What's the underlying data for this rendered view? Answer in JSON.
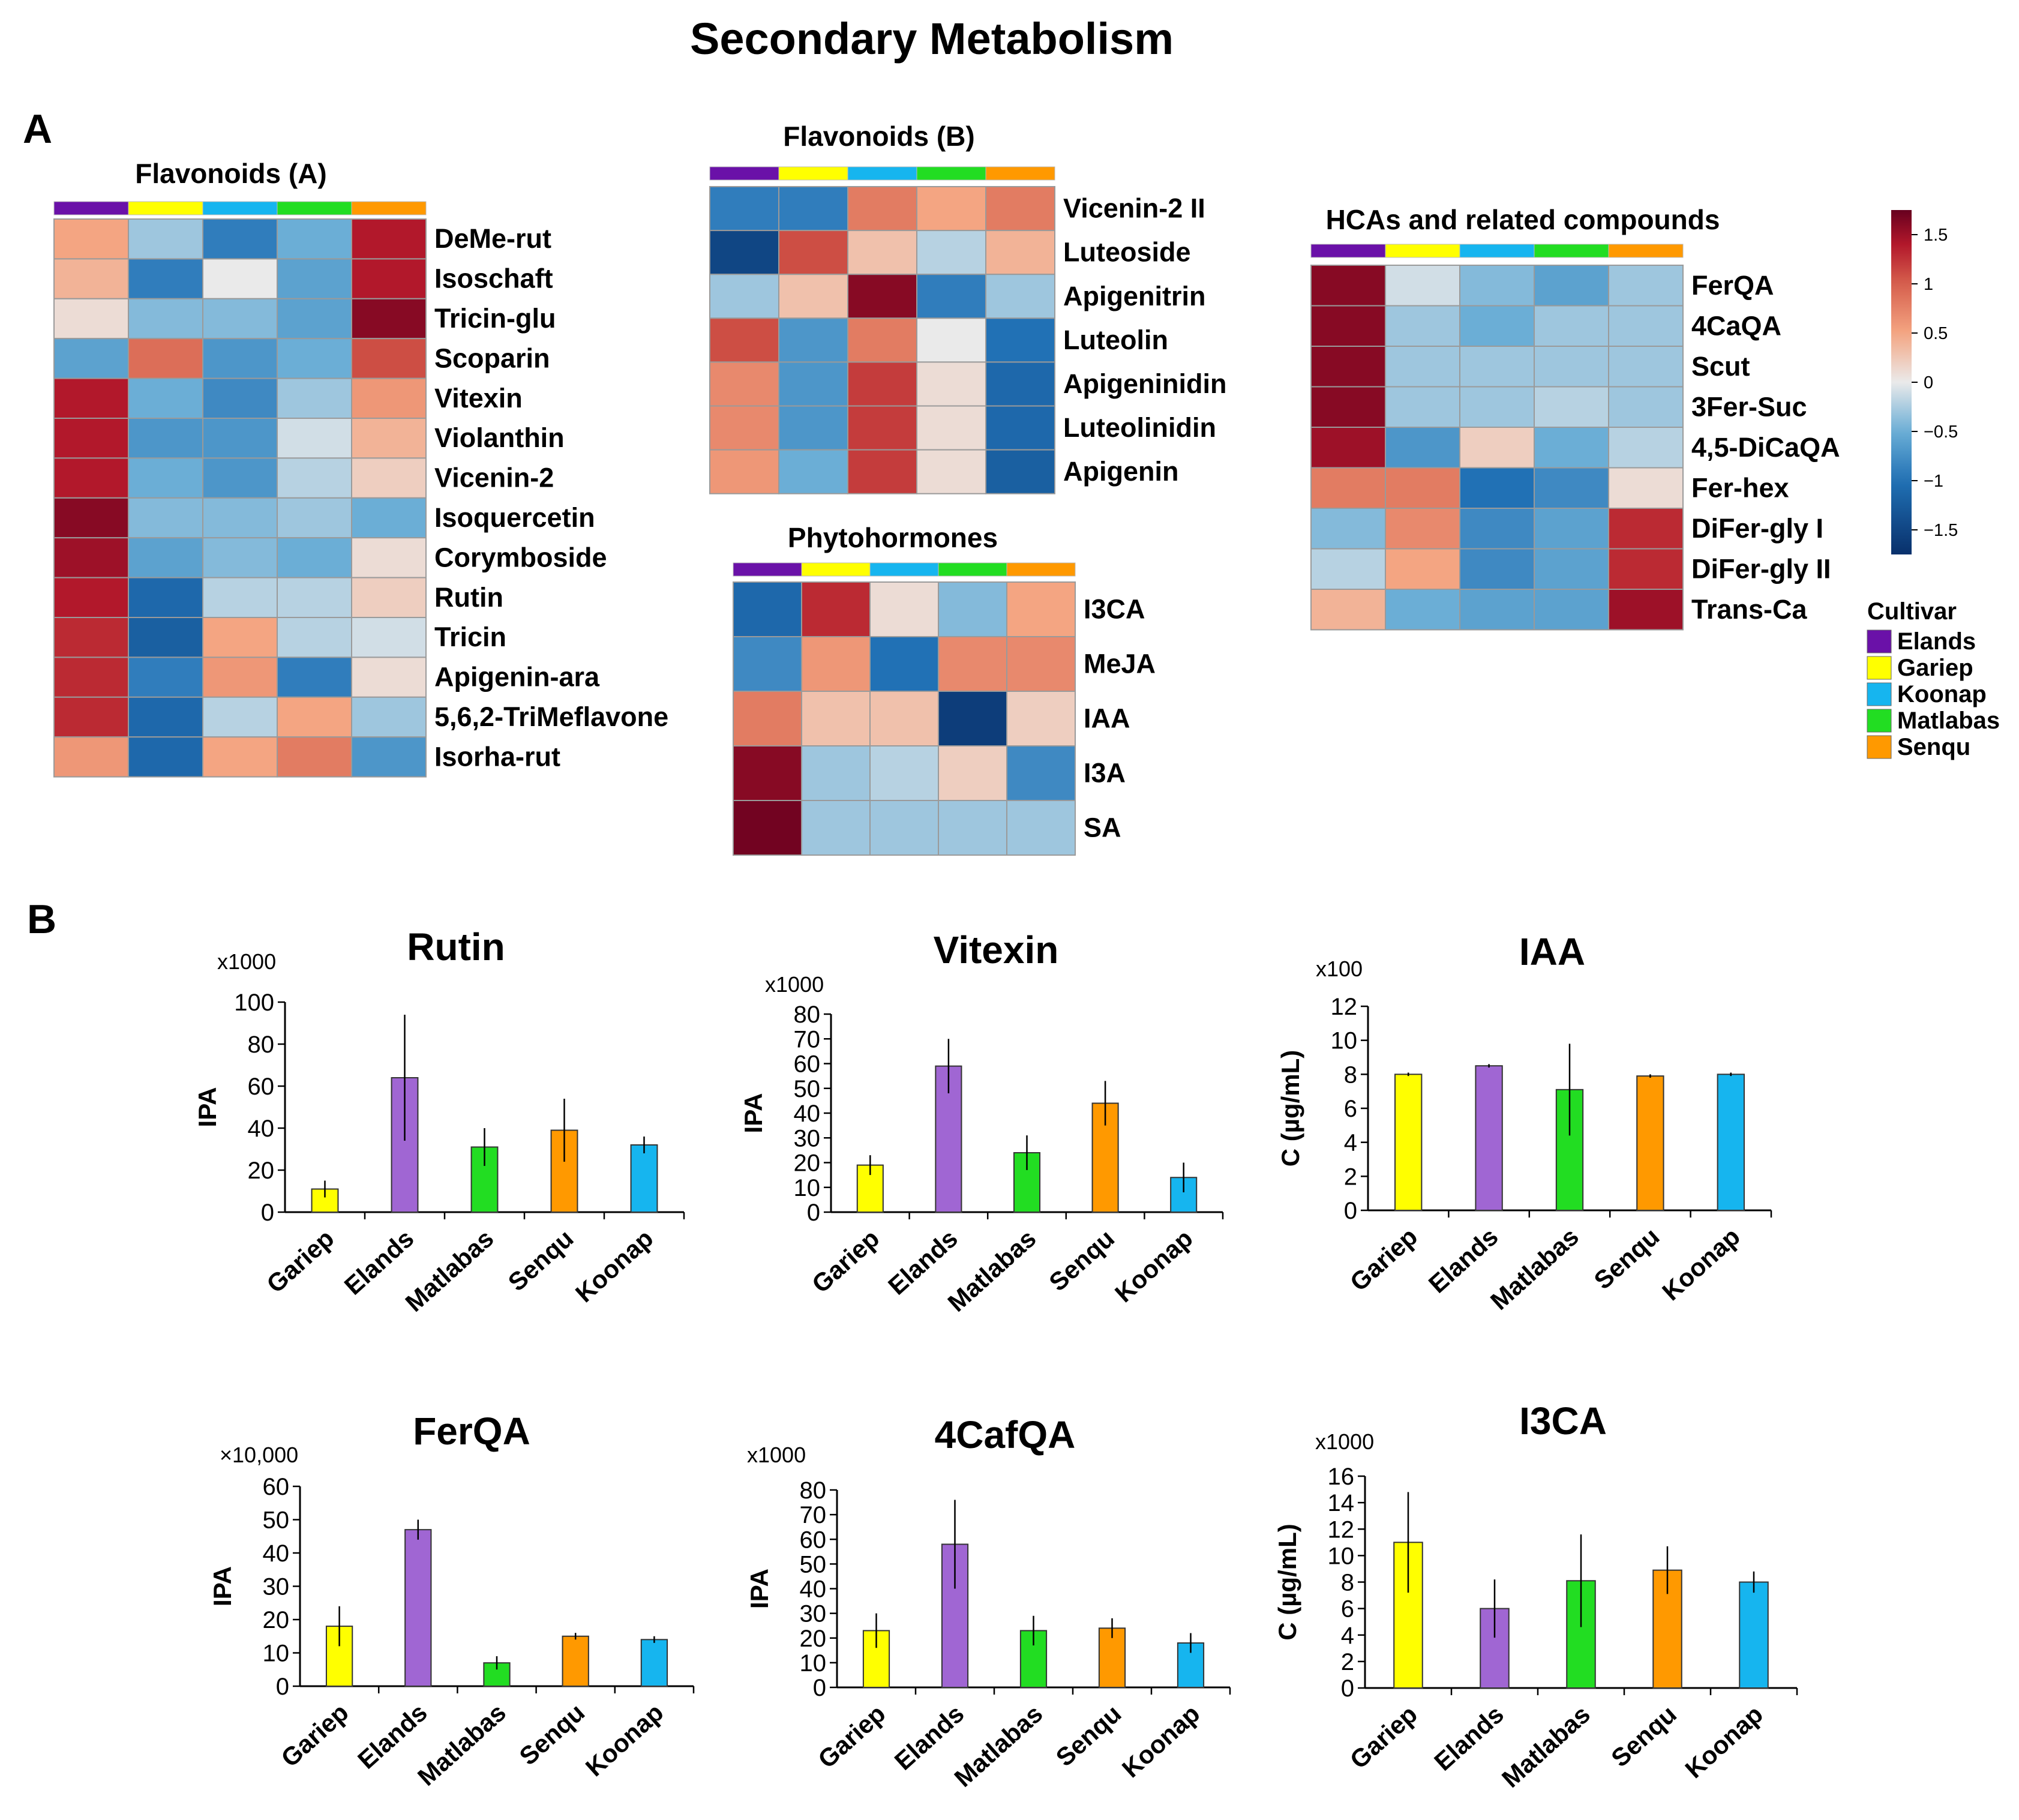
{
  "title": "Secondary Metabolism",
  "panel_labels": [
    "A",
    "B"
  ],
  "colors": {
    "Elands": "#6a11a8",
    "Gariep": "#ffff00",
    "Koonap": "#16b5ef",
    "Matlabas": "#22dd22",
    "Senqu": "#ff9900",
    "bar_Elands": "#a066d3",
    "scale_low": "#0a3a72",
    "scale_mid": "#eaeaea",
    "scale_high": "#6b0015"
  },
  "chart_data": [
    {
      "type": "heatmap",
      "title": "Flavonoids (A)",
      "columns": [
        "Elands",
        "Gariep",
        "Koonap",
        "Matlabas",
        "Senqu"
      ],
      "rows": [
        {
          "label": "DeMe-rut",
          "values": [
            0.5,
            -0.3,
            -0.9,
            -0.5,
            1.4
          ]
        },
        {
          "label": "Isoschaft",
          "values": [
            0.4,
            -0.9,
            0.0,
            -0.6,
            1.4
          ]
        },
        {
          "label": "Tricin-glu",
          "values": [
            0.1,
            -0.4,
            -0.4,
            -0.6,
            1.6
          ]
        },
        {
          "label": "Scoparin",
          "values": [
            -0.6,
            0.9,
            -0.7,
            -0.5,
            1.1
          ]
        },
        {
          "label": "Vitexin",
          "values": [
            1.4,
            -0.5,
            -0.8,
            -0.3,
            0.6
          ]
        },
        {
          "label": "Violanthin",
          "values": [
            1.4,
            -0.7,
            -0.7,
            -0.1,
            0.4
          ]
        },
        {
          "label": "Vicenin-2",
          "values": [
            1.4,
            -0.5,
            -0.7,
            -0.2,
            0.2
          ]
        },
        {
          "label": "Isoquercetin",
          "values": [
            1.6,
            -0.4,
            -0.4,
            -0.3,
            -0.5
          ]
        },
        {
          "label": "Corymboside",
          "values": [
            1.5,
            -0.6,
            -0.4,
            -0.5,
            0.1
          ]
        },
        {
          "label": "Rutin",
          "values": [
            1.4,
            -1.1,
            -0.2,
            -0.2,
            0.2
          ]
        },
        {
          "label": "Tricin",
          "values": [
            1.3,
            -1.2,
            0.5,
            -0.2,
            -0.1
          ]
        },
        {
          "label": "Apigenin-ara",
          "values": [
            1.3,
            -0.9,
            0.6,
            -0.9,
            0.1
          ]
        },
        {
          "label": "5,6,2-TriMeflavone",
          "values": [
            1.3,
            -1.1,
            -0.2,
            0.5,
            -0.3
          ]
        },
        {
          "label": "Isorha-rut",
          "values": [
            0.6,
            -1.1,
            0.5,
            0.8,
            -0.7
          ]
        }
      ],
      "legend_title": "Cultivar",
      "color_scale": {
        "min": -1.5,
        "max": 1.5,
        "ticks": [
          "1.5",
          "1",
          "0.5",
          "0",
          "−0.5",
          "−1",
          "−1.5"
        ]
      }
    },
    {
      "type": "heatmap",
      "title": "Flavonoids (B)",
      "columns": [
        "Elands",
        "Gariep",
        "Koonap",
        "Matlabas",
        "Senqu"
      ],
      "rows": [
        {
          "label": "Vicenin-2 II",
          "values": [
            -0.9,
            -0.9,
            0.8,
            0.5,
            0.8
          ]
        },
        {
          "label": "Luteoside",
          "values": [
            -1.5,
            1.1,
            0.3,
            -0.2,
            0.4
          ]
        },
        {
          "label": "Apigenitrin",
          "values": [
            -0.3,
            0.3,
            1.6,
            -0.9,
            -0.3
          ]
        },
        {
          "label": "Luteolin",
          "values": [
            1.1,
            -0.7,
            0.8,
            0.0,
            -1.0
          ]
        },
        {
          "label": "Apigeninidin",
          "values": [
            0.7,
            -0.7,
            1.2,
            0.1,
            -1.1
          ]
        },
        {
          "label": "Luteolinidin",
          "values": [
            0.7,
            -0.7,
            1.2,
            0.1,
            -1.1
          ]
        },
        {
          "label": "Apigenin",
          "values": [
            0.6,
            -0.5,
            1.2,
            0.1,
            -1.2
          ]
        }
      ]
    },
    {
      "type": "heatmap",
      "title": "Phytohormones",
      "columns": [
        "Elands",
        "Gariep",
        "Koonap",
        "Matlabas",
        "Senqu"
      ],
      "rows": [
        {
          "label": "I3CA",
          "values": [
            -1.1,
            1.3,
            0.1,
            -0.4,
            0.5
          ]
        },
        {
          "label": "MeJA",
          "values": [
            -0.8,
            0.6,
            -1.0,
            0.7,
            0.7
          ]
        },
        {
          "label": "IAA",
          "values": [
            0.8,
            0.3,
            0.3,
            -1.6,
            0.2
          ]
        },
        {
          "label": "I3A",
          "values": [
            1.6,
            -0.3,
            -0.2,
            0.2,
            -0.8
          ]
        },
        {
          "label": "SA",
          "values": [
            1.7,
            -0.3,
            -0.3,
            -0.3,
            -0.3
          ]
        }
      ]
    },
    {
      "type": "heatmap",
      "title": "HCAs and related compounds",
      "columns": [
        "Elands",
        "Gariep",
        "Koonap",
        "Matlabas",
        "Senqu"
      ],
      "rows": [
        {
          "label": "FerQA",
          "values": [
            1.6,
            -0.1,
            -0.4,
            -0.6,
            -0.3
          ]
        },
        {
          "label": "4CaQA",
          "values": [
            1.6,
            -0.3,
            -0.5,
            -0.3,
            -0.3
          ]
        },
        {
          "label": "Scut",
          "values": [
            1.6,
            -0.3,
            -0.3,
            -0.3,
            -0.3
          ]
        },
        {
          "label": "3Fer-Suc",
          "values": [
            1.6,
            -0.3,
            -0.3,
            -0.2,
            -0.3
          ]
        },
        {
          "label": "4,5-DiCaQA",
          "values": [
            1.5,
            -0.7,
            0.2,
            -0.5,
            -0.2
          ]
        },
        {
          "label": "Fer-hex",
          "values": [
            0.8,
            0.8,
            -1.0,
            -0.8,
            0.1
          ]
        },
        {
          "label": "DiFer-gly I",
          "values": [
            -0.4,
            0.7,
            -0.8,
            -0.6,
            1.3
          ]
        },
        {
          "label": "DiFer-gly II",
          "values": [
            -0.2,
            0.5,
            -0.8,
            -0.6,
            1.3
          ]
        },
        {
          "label": "Trans-Ca",
          "values": [
            0.4,
            -0.5,
            -0.6,
            -0.6,
            1.5
          ]
        }
      ]
    },
    {
      "type": "bar",
      "title": "Rutin",
      "multiplier": "x1000",
      "ylabel": "IPA",
      "categories": [
        "Gariep",
        "Elands",
        "Matlabas",
        "Senqu",
        "Koonap"
      ],
      "values": [
        11,
        64,
        31,
        39,
        32
      ],
      "errors": [
        4,
        30,
        9,
        15,
        4
      ],
      "ylim": [
        0,
        100
      ],
      "yticks": [
        0,
        20,
        40,
        60,
        80,
        100
      ]
    },
    {
      "type": "bar",
      "title": "Vitexin",
      "multiplier": "x1000",
      "ylabel": "IPA",
      "categories": [
        "Gariep",
        "Elands",
        "Matlabas",
        "Senqu",
        "Koonap"
      ],
      "values": [
        19,
        59,
        24,
        44,
        14
      ],
      "errors": [
        4,
        11,
        7,
        9,
        6
      ],
      "ylim": [
        0,
        80
      ],
      "yticks": [
        0,
        10,
        20,
        30,
        40,
        50,
        60,
        70,
        80
      ]
    },
    {
      "type": "bar",
      "title": "IAA",
      "multiplier": "x100",
      "ylabel": "C (µg/mL)",
      "categories": [
        "Gariep",
        "Elands",
        "Matlabas",
        "Senqu",
        "Koonap"
      ],
      "values": [
        8.0,
        8.5,
        7.1,
        7.9,
        8.0
      ],
      "errors": [
        0.1,
        0.1,
        2.7,
        0.1,
        0.1
      ],
      "ylim": [
        0,
        12
      ],
      "yticks": [
        0,
        2,
        4,
        6,
        8,
        10,
        12
      ]
    },
    {
      "type": "bar",
      "title": "FerQA",
      "multiplier": "×10,000",
      "ylabel": "IPA",
      "categories": [
        "Gariep",
        "Elands",
        "Matlabas",
        "Senqu",
        "Koonap"
      ],
      "values": [
        18,
        47,
        7,
        15,
        14
      ],
      "errors": [
        6,
        3,
        2,
        1,
        1
      ],
      "ylim": [
        0,
        60
      ],
      "yticks": [
        0,
        10,
        20,
        30,
        40,
        50,
        60
      ]
    },
    {
      "type": "bar",
      "title": "4CafQA",
      "multiplier": "x1000",
      "ylabel": "IPA",
      "categories": [
        "Gariep",
        "Elands",
        "Matlabas",
        "Senqu",
        "Koonap"
      ],
      "values": [
        23,
        58,
        23,
        24,
        18
      ],
      "errors": [
        7,
        18,
        6,
        4,
        4
      ],
      "ylim": [
        0,
        80
      ],
      "yticks": [
        0,
        10,
        20,
        30,
        40,
        50,
        60,
        70,
        80
      ]
    },
    {
      "type": "bar",
      "title": "I3CA",
      "multiplier": "x1000",
      "ylabel": "C (µg/mL)",
      "categories": [
        "Gariep",
        "Elands",
        "Matlabas",
        "Senqu",
        "Koonap"
      ],
      "values": [
        11.0,
        6.0,
        8.1,
        8.9,
        8.0
      ],
      "errors": [
        3.8,
        2.2,
        3.5,
        1.8,
        0.8
      ],
      "ylim": [
        0,
        16
      ],
      "yticks": [
        0,
        2,
        4,
        6,
        8,
        10,
        12,
        14,
        16
      ]
    }
  ]
}
